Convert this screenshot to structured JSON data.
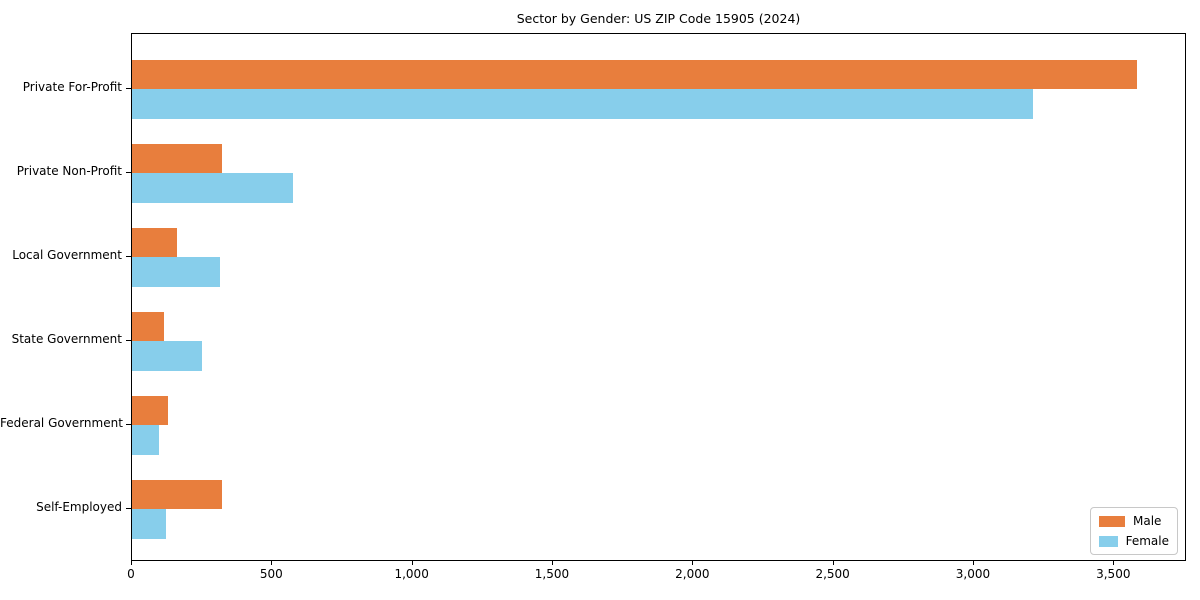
{
  "title": "Sector by Gender: US ZIP Code 15905 (2024)",
  "chart_data": {
    "type": "bar",
    "orientation": "horizontal",
    "title": "Sector by Gender: US ZIP Code 15905 (2024)",
    "categories": [
      "Private For-Profit",
      "Private Non-Profit",
      "Local Government",
      "State Government",
      "Federal Government",
      "Self-Employed"
    ],
    "series": [
      {
        "name": "Male",
        "color": "#e87e3d",
        "values": [
          3580,
          320,
          160,
          115,
          130,
          320
        ]
      },
      {
        "name": "Female",
        "color": "#87ceeb",
        "values": [
          3210,
          575,
          315,
          250,
          95,
          120
        ]
      }
    ],
    "xlabel": "",
    "ylabel": "",
    "xlim": [
      0,
      3759
    ],
    "xticks": [
      0,
      500,
      1000,
      1500,
      2000,
      2500,
      3000,
      3500
    ],
    "xtick_labels": [
      "0",
      "500",
      "1,000",
      "1,500",
      "2,000",
      "2,500",
      "3,000",
      "3,500"
    ],
    "grid": false,
    "legend": {
      "position": "lower right",
      "entries": [
        "Male",
        "Female"
      ]
    }
  },
  "colors": {
    "male": "#e87e3d",
    "female": "#87ceeb",
    "axis": "#000000",
    "legend_border": "#c8c8c8",
    "background": "#ffffff",
    "text": "#000000"
  }
}
